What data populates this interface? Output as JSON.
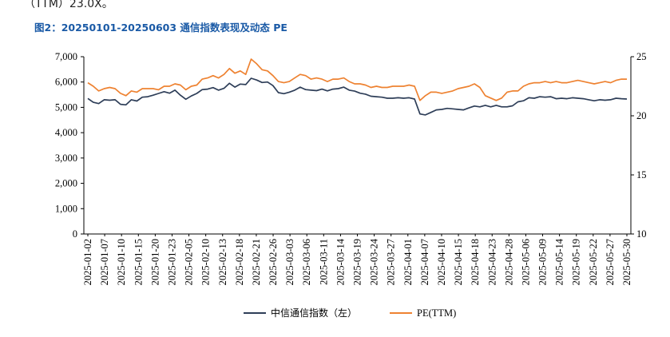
{
  "header": {
    "top_text": "（TTM）23.0X。",
    "figure_title": "图2：20250101-20250603 通信指数表现及动态 PE"
  },
  "colors": {
    "index_line": "#2e3e58",
    "pe_line": "#ee8231",
    "title": "#1a5aa6"
  },
  "chart_data": {
    "type": "line",
    "title": "图2：20250101-20250603 通信指数表现及动态 PE",
    "xlabel": "",
    "ylabel": "",
    "x_tick_labels": [
      "2025-01-02",
      "2025-01-07",
      "2025-01-10",
      "2025-01-15",
      "2025-01-20",
      "2025-01-23",
      "2025-02-05",
      "2025-02-10",
      "2025-02-13",
      "2025-02-18",
      "2025-02-21",
      "2025-02-26",
      "2025-03-03",
      "2025-03-06",
      "2025-03-11",
      "2025-03-14",
      "2025-03-19",
      "2025-03-24",
      "2025-03-27",
      "2025-04-01",
      "2025-04-07",
      "2025-04-10",
      "2025-04-15",
      "2025-04-18",
      "2025-04-23",
      "2025-04-28",
      "2025-05-06",
      "2025-05-09",
      "2025-05-14",
      "2025-05-19",
      "2025-05-22",
      "2025-05-27",
      "2025-05-30"
    ],
    "y_left": {
      "min": 0,
      "max": 7000,
      "ticks": [
        "0",
        "1,000",
        "2,000",
        "3,000",
        "4,000",
        "5,000",
        "6,000",
        "7,000"
      ]
    },
    "y_right": {
      "min": 10,
      "max": 25,
      "ticks": [
        "10",
        "15",
        "20",
        "25"
      ]
    },
    "legend_position": "bottom",
    "series": [
      {
        "name": "中信通信指数（左）",
        "axis": "left",
        "values": [
          5350,
          5200,
          5150,
          5300,
          5280,
          5300,
          5120,
          5100,
          5300,
          5250,
          5400,
          5420,
          5480,
          5550,
          5620,
          5560,
          5680,
          5480,
          5320,
          5450,
          5550,
          5700,
          5720,
          5780,
          5680,
          5750,
          5950,
          5800,
          5920,
          5900,
          6150,
          6080,
          5980,
          6000,
          5860,
          5580,
          5540,
          5600,
          5680,
          5800,
          5700,
          5680,
          5660,
          5720,
          5650,
          5720,
          5740,
          5800,
          5680,
          5640,
          5560,
          5520,
          5440,
          5420,
          5400,
          5360,
          5360,
          5380,
          5360,
          5380,
          5330,
          4740,
          4700,
          4800,
          4900,
          4920,
          4960,
          4940,
          4920,
          4900,
          4980,
          5050,
          5020,
          5080,
          5020,
          5080,
          5020,
          5020,
          5060,
          5220,
          5260,
          5380,
          5360,
          5420,
          5400,
          5420,
          5340,
          5360,
          5340,
          5380,
          5360,
          5340,
          5300,
          5260,
          5300,
          5280,
          5300,
          5360,
          5340,
          5330
        ]
      },
      {
        "name": "PE(TTM)",
        "axis": "right",
        "values": [
          22.8,
          22.5,
          22.1,
          22.3,
          22.4,
          22.3,
          21.9,
          21.7,
          22.1,
          22.0,
          22.3,
          22.3,
          22.3,
          22.2,
          22.5,
          22.5,
          22.7,
          22.6,
          22.2,
          22.5,
          22.6,
          23.1,
          23.2,
          23.4,
          23.2,
          23.5,
          24.0,
          23.6,
          23.8,
          23.5,
          24.8,
          24.4,
          23.9,
          23.8,
          23.4,
          22.9,
          22.8,
          22.9,
          23.2,
          23.5,
          23.4,
          23.1,
          23.2,
          23.1,
          22.9,
          23.1,
          23.1,
          23.2,
          22.9,
          22.7,
          22.7,
          22.6,
          22.4,
          22.5,
          22.4,
          22.4,
          22.5,
          22.5,
          22.5,
          22.6,
          22.5,
          21.3,
          21.7,
          22.0,
          22.0,
          21.9,
          22.0,
          22.1,
          22.3,
          22.4,
          22.5,
          22.7,
          22.4,
          21.7,
          21.5,
          21.3,
          21.5,
          22.0,
          22.1,
          22.1,
          22.5,
          22.7,
          22.8,
          22.8,
          22.9,
          22.8,
          22.9,
          22.8,
          22.8,
          22.9,
          23.0,
          22.9,
          22.8,
          22.7,
          22.8,
          22.9,
          22.8,
          23.0,
          23.1,
          23.1
        ]
      }
    ]
  }
}
